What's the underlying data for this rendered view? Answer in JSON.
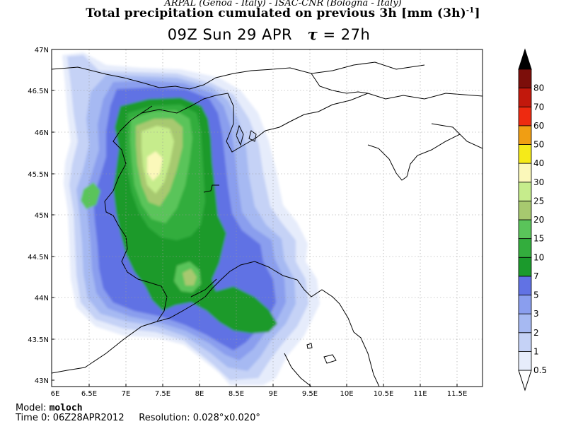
{
  "header": {
    "organizations": "ARPAL (Genoa - Italy)  -  ISAC-CNR (Bologna - Italy)",
    "title": "Total precipitation cumulated on previous 3h [mm (3h)",
    "title_exponent": "-1",
    "title_close": "]",
    "time_label": "09Z Sun 29 APR",
    "tau_symbol": "τ",
    "tau_value": "= 27h"
  },
  "map": {
    "lat_ticks": [
      "47N",
      "46.5N",
      "46N",
      "45.5N",
      "45N",
      "44.5N",
      "44N",
      "43.5N",
      "43N"
    ],
    "lon_ticks": [
      "6E",
      "6.5E",
      "7E",
      "7.5E",
      "8E",
      "8.5E",
      "9E",
      "9.5E",
      "10E",
      "10.5E",
      "11E",
      "11.5E"
    ],
    "lat_range": [
      43,
      47
    ],
    "lon_range": [
      6,
      12
    ]
  },
  "colorbar": {
    "labels": [
      "0.5",
      "1",
      "2",
      "3",
      "5",
      "7",
      "10",
      "15",
      "20",
      "25",
      "30",
      "40",
      "50",
      "60",
      "70",
      "80"
    ],
    "colors": [
      "#e6ecfb",
      "#c5d2f6",
      "#a6b9f2",
      "#8a9eee",
      "#6172e4",
      "#1b9a2c",
      "#33ad3d",
      "#5ac45a",
      "#a7c96f",
      "#c6ec8c",
      "#fbf8ba",
      "#f5ea19",
      "#f09e13",
      "#ee2a10",
      "#c2180c",
      "#7c0e0a"
    ],
    "over_color": "#000000",
    "under_color": "#ffffff"
  },
  "footer": {
    "model_label": "Model:",
    "model_name": "moloch",
    "time0_label": "Time 0:",
    "time0_value": "06Z28APR2012",
    "resolution_label": "Resolution:",
    "resolution_value": "0.028°x0.020°"
  }
}
